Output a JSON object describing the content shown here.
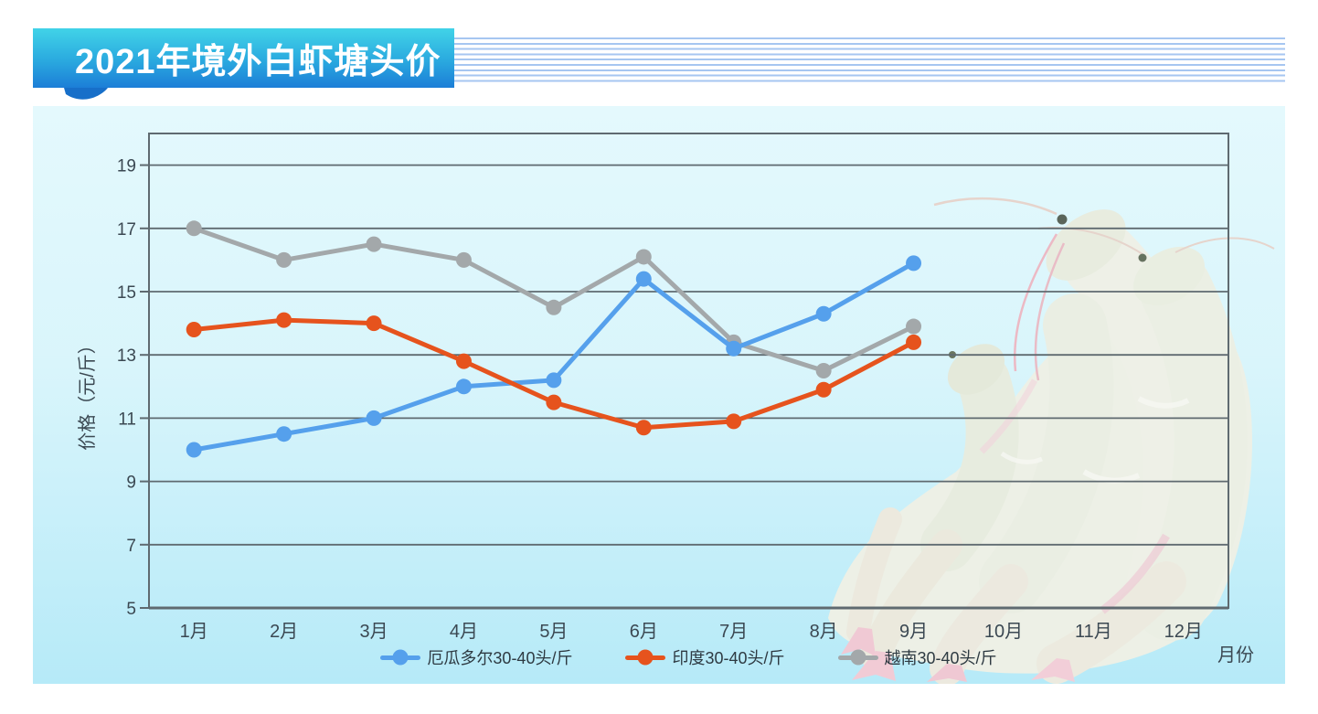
{
  "header": {
    "title": "2021年境外白虾塘头价"
  },
  "images": [
    {
      "name": "shrimp-photo",
      "description": "堆叠的生白虾照片，覆盖图表右侧区域"
    }
  ],
  "chart_data": {
    "type": "line",
    "title": "2021年境外白虾塘头价",
    "categories": [
      "1月",
      "2月",
      "3月",
      "4月",
      "5月",
      "6月",
      "7月",
      "8月",
      "9月",
      "10月",
      "11月",
      "12月"
    ],
    "series": [
      {
        "name": "厄瓜多尔30-40头/斤",
        "color": "#55a0ec",
        "values": [
          10.0,
          10.5,
          11.0,
          12.0,
          12.2,
          15.4,
          13.2,
          14.3,
          15.9,
          null,
          null,
          null
        ]
      },
      {
        "name": "印度30-40头/斤",
        "color": "#e6531d",
        "values": [
          13.8,
          14.1,
          14.0,
          12.8,
          11.5,
          10.7,
          10.9,
          11.9,
          13.4,
          null,
          null,
          null
        ]
      },
      {
        "name": "越南30-40头/斤",
        "color": "#a3a8aa",
        "values": [
          17.0,
          16.0,
          16.5,
          16.0,
          14.5,
          16.1,
          13.4,
          12.5,
          13.9,
          null,
          null,
          null
        ]
      }
    ],
    "xlabel": "月份",
    "ylabel": "价格（元/斤）",
    "y_ticks": [
      5,
      7,
      9,
      11,
      13,
      15,
      17,
      19
    ],
    "ylim": [
      5,
      20
    ],
    "grid": true,
    "legend_position": "bottom",
    "draw_order": [
      2,
      0,
      1
    ],
    "axis_color": "#5f6a70",
    "label_color": "#3b4852"
  }
}
